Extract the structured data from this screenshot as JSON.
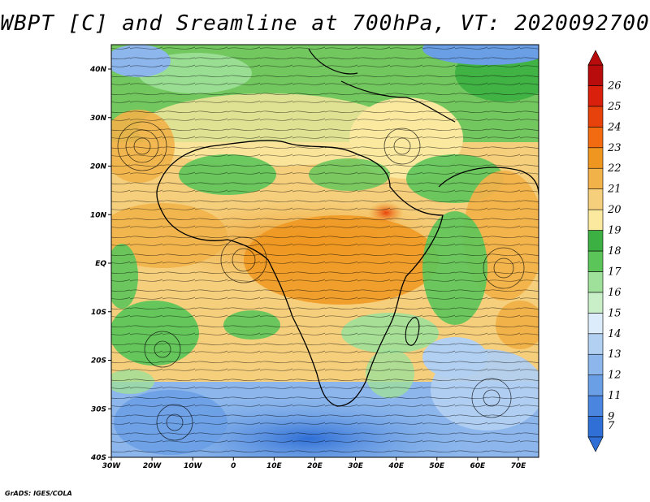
{
  "title": "WBPT [C] and Sreamline at 700hPa, VT: 2020092700",
  "credit": "GrADS: IGES/COLA",
  "map": {
    "lon_ticks": [
      "30W",
      "20W",
      "10W",
      "0",
      "10E",
      "20E",
      "30E",
      "40E",
      "50E",
      "60E",
      "70E"
    ],
    "lat_ticks": [
      "40N",
      "30N",
      "20N",
      "10N",
      "EQ",
      "10S",
      "20S",
      "30S",
      "40S"
    ]
  },
  "colorbar": {
    "levels": [
      "7",
      "9",
      "11",
      "12",
      "13",
      "14",
      "15",
      "16",
      "17",
      "18",
      "19",
      "20",
      "21",
      "22",
      "23",
      "24",
      "25",
      "26"
    ],
    "colors": [
      "#2f6fd6",
      "#4a86e0",
      "#6a9fe6",
      "#8cb6ec",
      "#b2d0f2",
      "#dcecfa",
      "#c8efc8",
      "#9fe09a",
      "#5cc55a",
      "#3cb043",
      "#fbe9a0",
      "#f6cf7c",
      "#f2b24a",
      "#ef9620",
      "#f26b10",
      "#e8420c",
      "#d8200c",
      "#b80c0c"
    ]
  }
}
